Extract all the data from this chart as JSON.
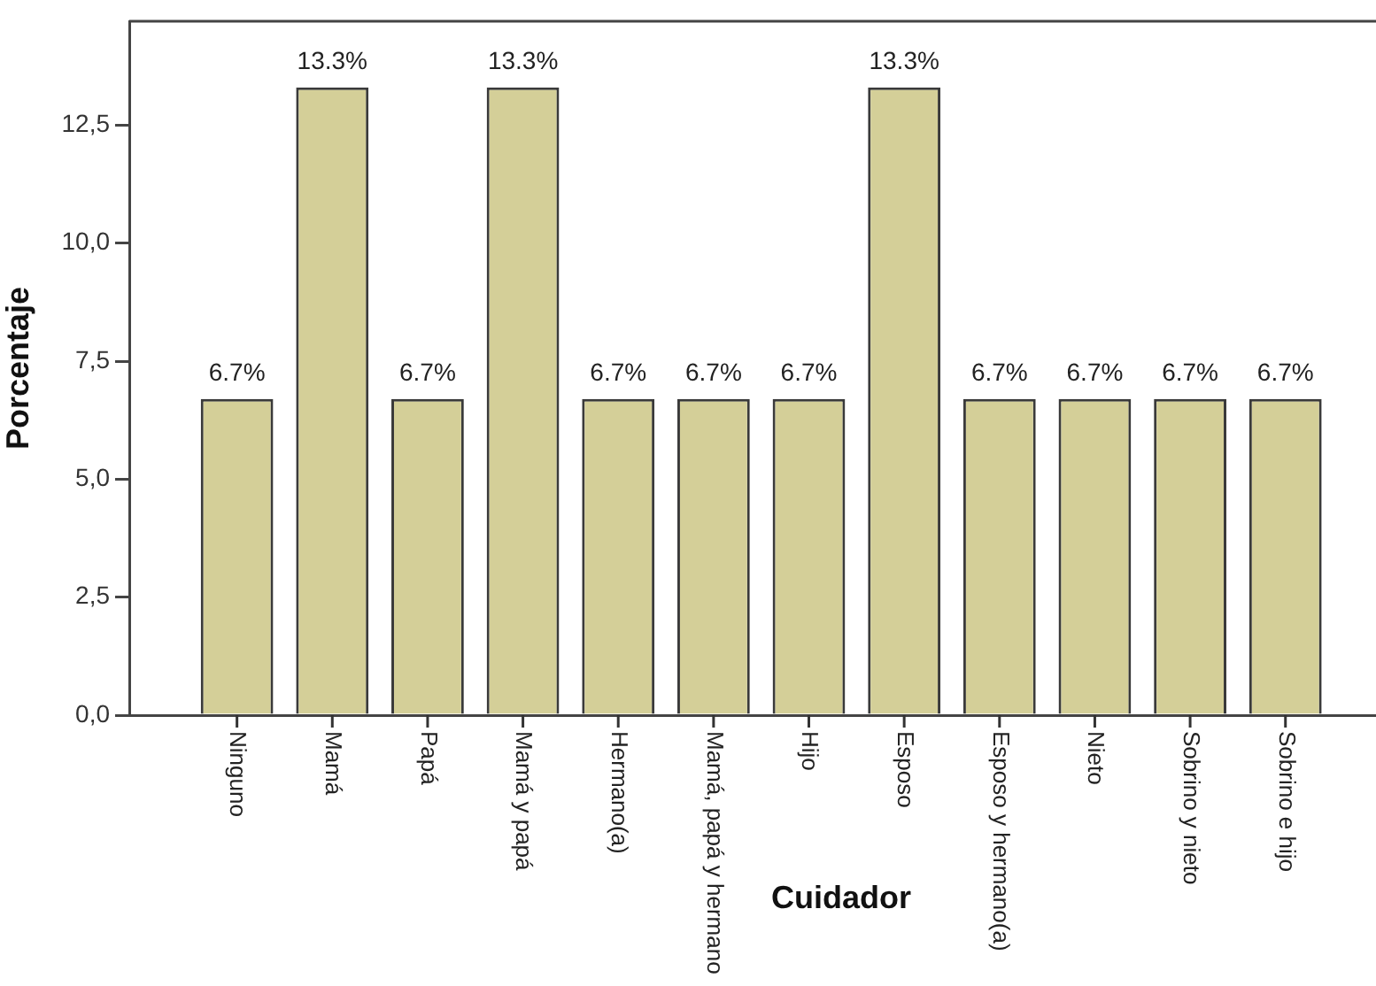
{
  "chart_data": {
    "type": "bar",
    "xlabel": "Cuidador",
    "ylabel": "Porcentaje",
    "categories": [
      "Ninguno",
      "Mamá",
      "Papá",
      "Mamá y papá",
      "Hermano(a)",
      "Mamá, papá y hermano",
      "Hijo",
      "Esposo",
      "Esposo y hermano(a)",
      "Nieto",
      "Sobrino y nieto",
      "Sobrino e hijo"
    ],
    "values": [
      6.7,
      13.3,
      6.7,
      13.3,
      6.7,
      6.7,
      6.7,
      13.3,
      6.7,
      6.7,
      6.7,
      6.7
    ],
    "value_labels": [
      "6.7%",
      "13.3%",
      "6.7%",
      "13.3%",
      "6.7%",
      "6.7%",
      "6.7%",
      "13.3%",
      "6.7%",
      "6.7%",
      "6.7%",
      "6.7%"
    ],
    "color": "#d4cf98",
    "ylim": [
      0,
      14.7
    ],
    "yticks": [
      {
        "value": 0,
        "label": "0,0"
      },
      {
        "value": 2.5,
        "label": "2,5"
      },
      {
        "value": 5,
        "label": "5,0"
      },
      {
        "value": 7.5,
        "label": "7,5"
      },
      {
        "value": 10,
        "label": "10,0"
      },
      {
        "value": 12.5,
        "label": "12,5"
      }
    ]
  }
}
